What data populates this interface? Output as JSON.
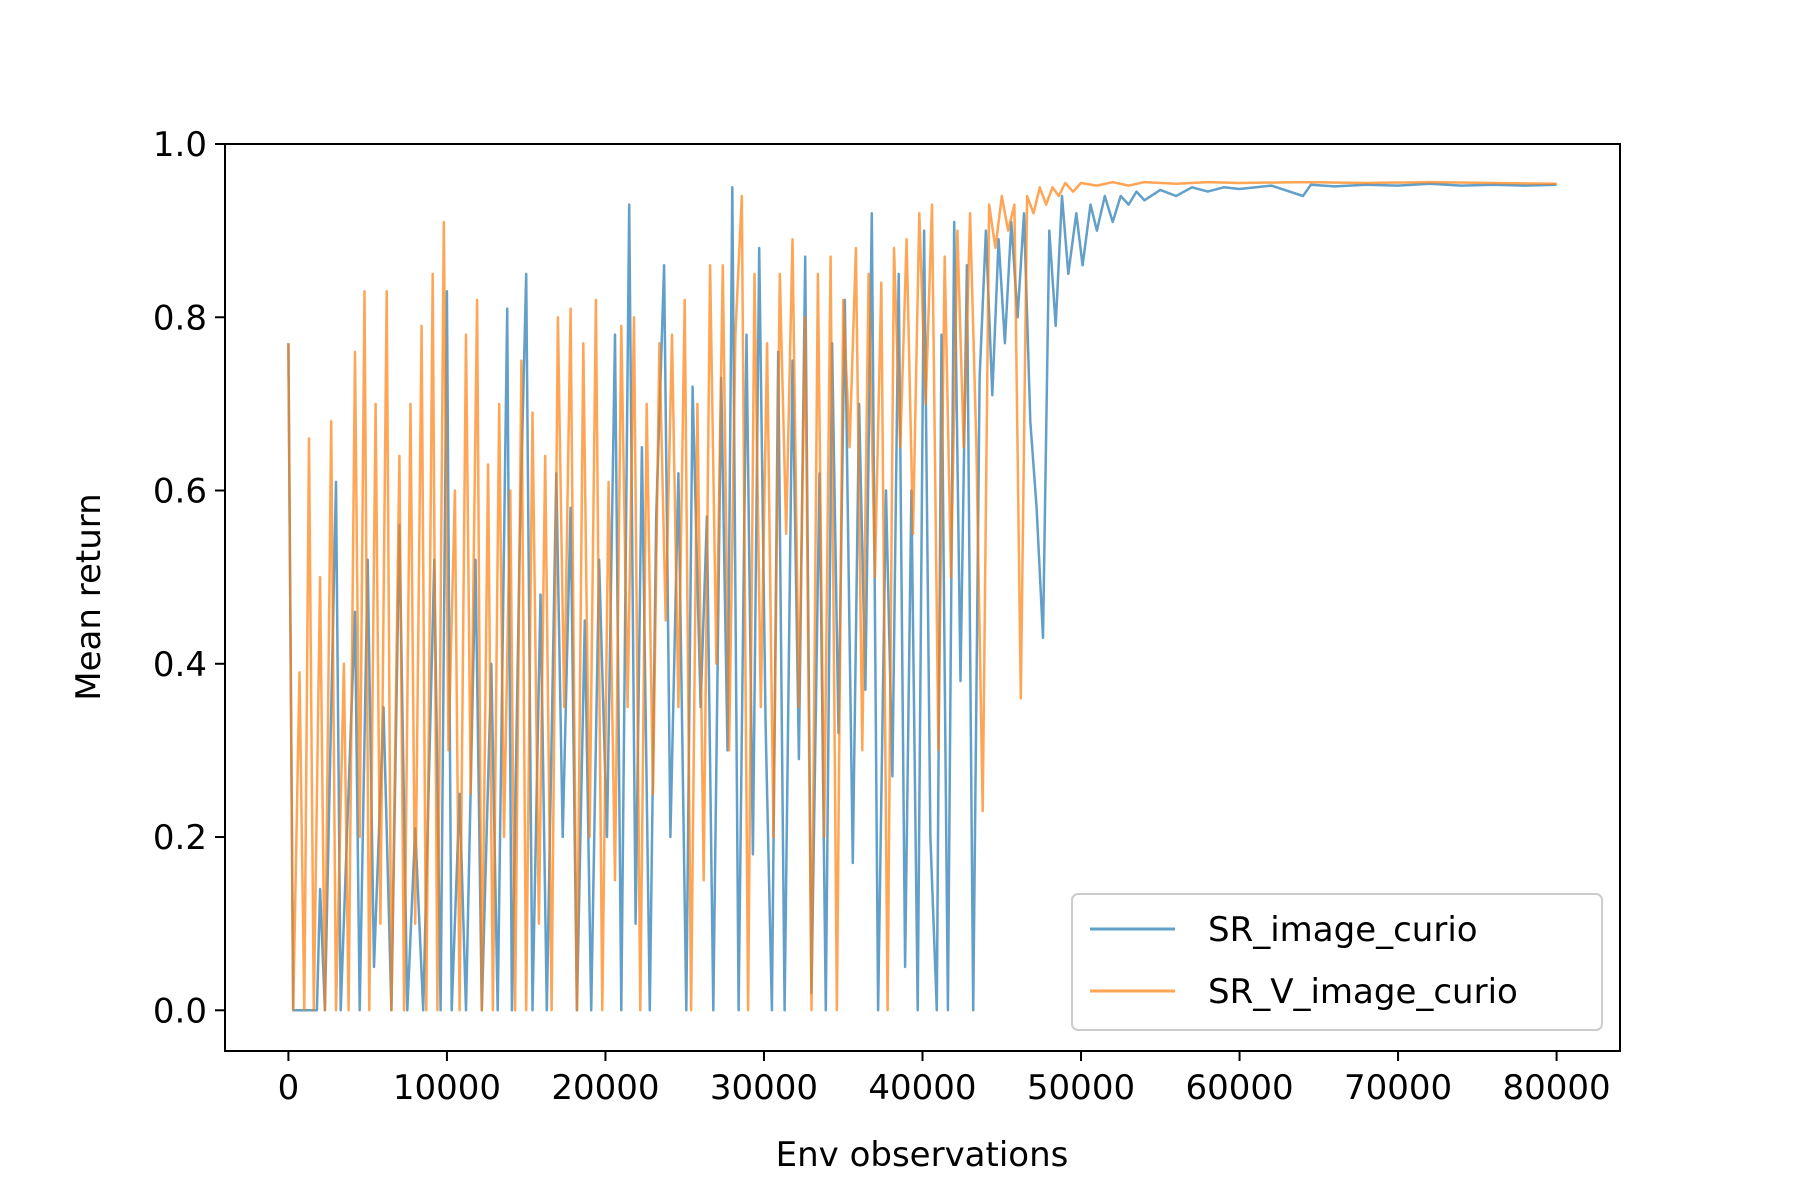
{
  "chart_data": {
    "type": "line",
    "title": "",
    "xlabel": "Env observations",
    "ylabel": "Mean return",
    "xlim": [
      -4000,
      84000
    ],
    "ylim": [
      -0.047,
      1.0
    ],
    "xticks": [
      0,
      10000,
      20000,
      30000,
      40000,
      50000,
      60000,
      70000,
      80000
    ],
    "xtick_labels": [
      "0",
      "10000",
      "20000",
      "30000",
      "40000",
      "50000",
      "60000",
      "70000",
      "80000"
    ],
    "yticks": [
      0.0,
      0.2,
      0.4,
      0.6,
      0.8,
      1.0
    ],
    "ytick_labels": [
      "0.0",
      "0.2",
      "0.4",
      "0.6",
      "0.8",
      "1.0"
    ],
    "grid": false,
    "legend_position": "lower-right",
    "series": [
      {
        "name": "SR_image_curio",
        "color": "#1f77b4",
        "points": [
          [
            0,
            0.77
          ],
          [
            300,
            0.0
          ],
          [
            1800,
            0.0
          ],
          [
            2000,
            0.14
          ],
          [
            2300,
            0.0
          ],
          [
            3000,
            0.61
          ],
          [
            3300,
            0.0
          ],
          [
            4200,
            0.46
          ],
          [
            4500,
            0.0
          ],
          [
            5000,
            0.52
          ],
          [
            5400,
            0.05
          ],
          [
            6000,
            0.35
          ],
          [
            6500,
            0.0
          ],
          [
            7000,
            0.56
          ],
          [
            7500,
            0.0
          ],
          [
            8000,
            0.21
          ],
          [
            8500,
            0.0
          ],
          [
            9200,
            0.52
          ],
          [
            9600,
            0.0
          ],
          [
            10000,
            0.83
          ],
          [
            10300,
            0.0
          ],
          [
            10800,
            0.25
          ],
          [
            11200,
            0.0
          ],
          [
            11800,
            0.52
          ],
          [
            12200,
            0.0
          ],
          [
            12800,
            0.4
          ],
          [
            13200,
            0.0
          ],
          [
            13800,
            0.81
          ],
          [
            14100,
            0.0
          ],
          [
            14600,
            0.55
          ],
          [
            15000,
            0.85
          ],
          [
            15400,
            0.0
          ],
          [
            15900,
            0.48
          ],
          [
            16300,
            0.0
          ],
          [
            16900,
            0.62
          ],
          [
            17300,
            0.2
          ],
          [
            17800,
            0.58
          ],
          [
            18200,
            0.0
          ],
          [
            18700,
            0.45
          ],
          [
            19100,
            0.0
          ],
          [
            19600,
            0.52
          ],
          [
            20100,
            0.2
          ],
          [
            20600,
            0.78
          ],
          [
            21000,
            0.0
          ],
          [
            21500,
            0.93
          ],
          [
            21900,
            0.1
          ],
          [
            22300,
            0.65
          ],
          [
            22800,
            0.0
          ],
          [
            23200,
            0.57
          ],
          [
            23700,
            0.86
          ],
          [
            24100,
            0.2
          ],
          [
            24600,
            0.62
          ],
          [
            25100,
            0.0
          ],
          [
            25500,
            0.72
          ],
          [
            26000,
            0.35
          ],
          [
            26400,
            0.57
          ],
          [
            26800,
            0.0
          ],
          [
            27300,
            0.73
          ],
          [
            27700,
            0.3
          ],
          [
            28000,
            0.95
          ],
          [
            28400,
            0.0
          ],
          [
            28900,
            0.78
          ],
          [
            29300,
            0.18
          ],
          [
            29700,
            0.88
          ],
          [
            30100,
            0.33
          ],
          [
            30500,
            0.0
          ],
          [
            30900,
            0.76
          ],
          [
            31300,
            0.0
          ],
          [
            31800,
            0.75
          ],
          [
            32200,
            0.29
          ],
          [
            32600,
            0.87
          ],
          [
            33000,
            0.02
          ],
          [
            33500,
            0.62
          ],
          [
            33900,
            0.0
          ],
          [
            34300,
            0.77
          ],
          [
            34700,
            0.32
          ],
          [
            35100,
            0.82
          ],
          [
            35600,
            0.17
          ],
          [
            36000,
            0.7
          ],
          [
            36400,
            0.37
          ],
          [
            36800,
            0.92
          ],
          [
            37200,
            0.0
          ],
          [
            37700,
            0.6
          ],
          [
            38100,
            0.27
          ],
          [
            38500,
            0.85
          ],
          [
            38900,
            0.05
          ],
          [
            39300,
            0.6
          ],
          [
            39700,
            0.0
          ],
          [
            40100,
            0.9
          ],
          [
            40500,
            0.2
          ],
          [
            40900,
            0.0
          ],
          [
            41200,
            0.78
          ],
          [
            41600,
            0.0
          ],
          [
            42000,
            0.91
          ],
          [
            42400,
            0.38
          ],
          [
            42800,
            0.86
          ],
          [
            43200,
            0.0
          ],
          [
            43600,
            0.73
          ],
          [
            44000,
            0.9
          ],
          [
            44400,
            0.71
          ],
          [
            44800,
            0.89
          ],
          [
            45200,
            0.77
          ],
          [
            45600,
            0.91
          ],
          [
            46000,
            0.8
          ],
          [
            46400,
            0.92
          ],
          [
            46800,
            0.68
          ],
          [
            47200,
            0.58
          ],
          [
            47600,
            0.43
          ],
          [
            48000,
            0.9
          ],
          [
            48400,
            0.79
          ],
          [
            48800,
            0.94
          ],
          [
            49200,
            0.85
          ],
          [
            49700,
            0.92
          ],
          [
            50100,
            0.86
          ],
          [
            50600,
            0.93
          ],
          [
            51000,
            0.9
          ],
          [
            51500,
            0.94
          ],
          [
            52000,
            0.91
          ],
          [
            52500,
            0.94
          ],
          [
            53000,
            0.93
          ],
          [
            53500,
            0.945
          ],
          [
            54000,
            0.935
          ],
          [
            55000,
            0.947
          ],
          [
            56000,
            0.94
          ],
          [
            57000,
            0.95
          ],
          [
            58000,
            0.945
          ],
          [
            59000,
            0.95
          ],
          [
            60000,
            0.948
          ],
          [
            62000,
            0.952
          ],
          [
            64000,
            0.94
          ],
          [
            64500,
            0.953
          ],
          [
            66000,
            0.951
          ],
          [
            68000,
            0.953
          ],
          [
            70000,
            0.952
          ],
          [
            72000,
            0.954
          ],
          [
            74000,
            0.952
          ],
          [
            76000,
            0.953
          ],
          [
            78000,
            0.952
          ],
          [
            80000,
            0.953
          ]
        ]
      },
      {
        "name": "SR_V_image_curio",
        "color": "#ff7f0e",
        "points": [
          [
            0,
            0.77
          ],
          [
            300,
            0.0
          ],
          [
            700,
            0.39
          ],
          [
            1000,
            0.0
          ],
          [
            1300,
            0.66
          ],
          [
            1600,
            0.0
          ],
          [
            2000,
            0.5
          ],
          [
            2300,
            0.0
          ],
          [
            2700,
            0.68
          ],
          [
            3000,
            0.0
          ],
          [
            3500,
            0.4
          ],
          [
            3800,
            0.0
          ],
          [
            4200,
            0.76
          ],
          [
            4500,
            0.2
          ],
          [
            4800,
            0.83
          ],
          [
            5100,
            0.0
          ],
          [
            5500,
            0.7
          ],
          [
            5800,
            0.1
          ],
          [
            6200,
            0.83
          ],
          [
            6500,
            0.0
          ],
          [
            7000,
            0.64
          ],
          [
            7300,
            0.0
          ],
          [
            7700,
            0.7
          ],
          [
            8000,
            0.1
          ],
          [
            8400,
            0.79
          ],
          [
            8700,
            0.0
          ],
          [
            9100,
            0.85
          ],
          [
            9400,
            0.0
          ],
          [
            9800,
            0.91
          ],
          [
            10100,
            0.3
          ],
          [
            10500,
            0.6
          ],
          [
            10800,
            0.0
          ],
          [
            11200,
            0.78
          ],
          [
            11500,
            0.25
          ],
          [
            11900,
            0.82
          ],
          [
            12200,
            0.0
          ],
          [
            12600,
            0.63
          ],
          [
            12900,
            0.0
          ],
          [
            13300,
            0.7
          ],
          [
            13600,
            0.2
          ],
          [
            14000,
            0.6
          ],
          [
            14300,
            0.0
          ],
          [
            14700,
            0.75
          ],
          [
            15000,
            0.0
          ],
          [
            15400,
            0.69
          ],
          [
            15800,
            0.1
          ],
          [
            16200,
            0.64
          ],
          [
            16600,
            0.0
          ],
          [
            17000,
            0.8
          ],
          [
            17400,
            0.35
          ],
          [
            17800,
            0.81
          ],
          [
            18200,
            0.0
          ],
          [
            18600,
            0.77
          ],
          [
            19000,
            0.2
          ],
          [
            19400,
            0.82
          ],
          [
            19800,
            0.0
          ],
          [
            20200,
            0.61
          ],
          [
            20600,
            0.15
          ],
          [
            21000,
            0.79
          ],
          [
            21400,
            0.35
          ],
          [
            21800,
            0.8
          ],
          [
            22200,
            0.0
          ],
          [
            22600,
            0.7
          ],
          [
            23000,
            0.25
          ],
          [
            23400,
            0.77
          ],
          [
            23800,
            0.45
          ],
          [
            24200,
            0.78
          ],
          [
            24600,
            0.35
          ],
          [
            25000,
            0.82
          ],
          [
            25400,
            0.0
          ],
          [
            25800,
            0.7
          ],
          [
            26200,
            0.15
          ],
          [
            26600,
            0.86
          ],
          [
            27000,
            0.4
          ],
          [
            27400,
            0.86
          ],
          [
            27800,
            0.3
          ],
          [
            28200,
            0.78
          ],
          [
            28600,
            0.94
          ],
          [
            29000,
            0.0
          ],
          [
            29400,
            0.85
          ],
          [
            29800,
            0.35
          ],
          [
            30200,
            0.77
          ],
          [
            30600,
            0.2
          ],
          [
            31000,
            0.85
          ],
          [
            31400,
            0.55
          ],
          [
            31800,
            0.89
          ],
          [
            32200,
            0.35
          ],
          [
            32600,
            0.8
          ],
          [
            33000,
            0.0
          ],
          [
            33400,
            0.85
          ],
          [
            33800,
            0.2
          ],
          [
            34200,
            0.87
          ],
          [
            34600,
            0.0
          ],
          [
            35000,
            0.82
          ],
          [
            35400,
            0.65
          ],
          [
            35800,
            0.88
          ],
          [
            36200,
            0.3
          ],
          [
            36600,
            0.85
          ],
          [
            37000,
            0.5
          ],
          [
            37400,
            0.84
          ],
          [
            37800,
            0.0
          ],
          [
            38200,
            0.88
          ],
          [
            38600,
            0.65
          ],
          [
            39000,
            0.89
          ],
          [
            39400,
            0.55
          ],
          [
            39800,
            0.92
          ],
          [
            40200,
            0.7
          ],
          [
            40600,
            0.93
          ],
          [
            41000,
            0.3
          ],
          [
            41400,
            0.87
          ],
          [
            41800,
            0.5
          ],
          [
            42200,
            0.9
          ],
          [
            42600,
            0.65
          ],
          [
            43000,
            0.92
          ],
          [
            43400,
            0.65
          ],
          [
            43800,
            0.23
          ],
          [
            44200,
            0.93
          ],
          [
            44600,
            0.88
          ],
          [
            45000,
            0.94
          ],
          [
            45400,
            0.9
          ],
          [
            45800,
            0.93
          ],
          [
            46200,
            0.36
          ],
          [
            46600,
            0.94
          ],
          [
            47000,
            0.92
          ],
          [
            47400,
            0.95
          ],
          [
            47800,
            0.93
          ],
          [
            48200,
            0.95
          ],
          [
            48600,
            0.94
          ],
          [
            49000,
            0.955
          ],
          [
            49500,
            0.945
          ],
          [
            50000,
            0.955
          ],
          [
            51000,
            0.952
          ],
          [
            52000,
            0.956
          ],
          [
            53000,
            0.952
          ],
          [
            54000,
            0.956
          ],
          [
            56000,
            0.954
          ],
          [
            58000,
            0.956
          ],
          [
            60000,
            0.955
          ],
          [
            64000,
            0.956
          ],
          [
            68000,
            0.955
          ],
          [
            72000,
            0.956
          ],
          [
            76000,
            0.955
          ],
          [
            80000,
            0.954
          ]
        ]
      }
    ]
  }
}
